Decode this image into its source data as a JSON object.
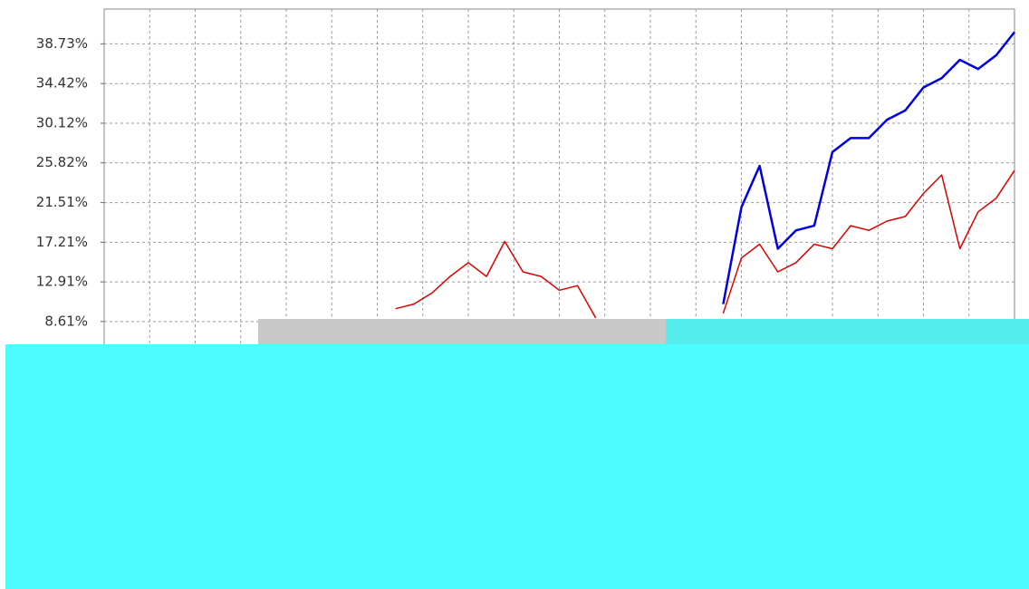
{
  "chart_data": {
    "type": "line",
    "ylim": [
      -20.4,
      42.5
    ],
    "yticks": [
      {
        "value": 8.61,
        "label": "8.61%"
      },
      {
        "value": 12.91,
        "label": "12.91%"
      },
      {
        "value": 17.21,
        "label": "17.21%"
      },
      {
        "value": 21.51,
        "label": "21.51%"
      },
      {
        "value": 25.82,
        "label": "25.82%"
      },
      {
        "value": 30.12,
        "label": "30.12%"
      },
      {
        "value": 34.42,
        "label": "34.42%"
      },
      {
        "value": 38.73,
        "label": "38.73%"
      }
    ],
    "grid": true,
    "series": [
      {
        "color": "#0000e0",
        "values": [
          null,
          null,
          null,
          null,
          null,
          null,
          null,
          null,
          null,
          null,
          null,
          null,
          null,
          null,
          null,
          null,
          null,
          null,
          null,
          null,
          null,
          null,
          null,
          null,
          null,
          null,
          null,
          null,
          null,
          null,
          null,
          null,
          null,
          null,
          10.5,
          21.0,
          25.5,
          16.5,
          18.5,
          19.0,
          27.0,
          28.5,
          28.5,
          30.5,
          31.5,
          34.0,
          35.0,
          37.0,
          36.0,
          37.5,
          40.0
        ]
      },
      {
        "color": "#dd0000",
        "values": [
          null,
          null,
          null,
          null,
          null,
          null,
          null,
          null,
          null,
          null,
          null,
          null,
          null,
          null,
          null,
          null,
          10.0,
          10.5,
          11.7,
          13.5,
          15.0,
          13.5,
          17.3,
          14.0,
          13.5,
          12.0,
          12.5,
          9.0,
          null,
          null,
          null,
          null,
          null,
          null,
          9.5,
          15.5,
          17.0,
          14.0,
          15.0,
          17.0,
          16.5,
          19.0,
          18.5,
          19.5,
          20.0,
          22.5,
          24.5,
          16.5,
          20.5,
          22.0,
          25.0
        ]
      }
    ]
  }
}
